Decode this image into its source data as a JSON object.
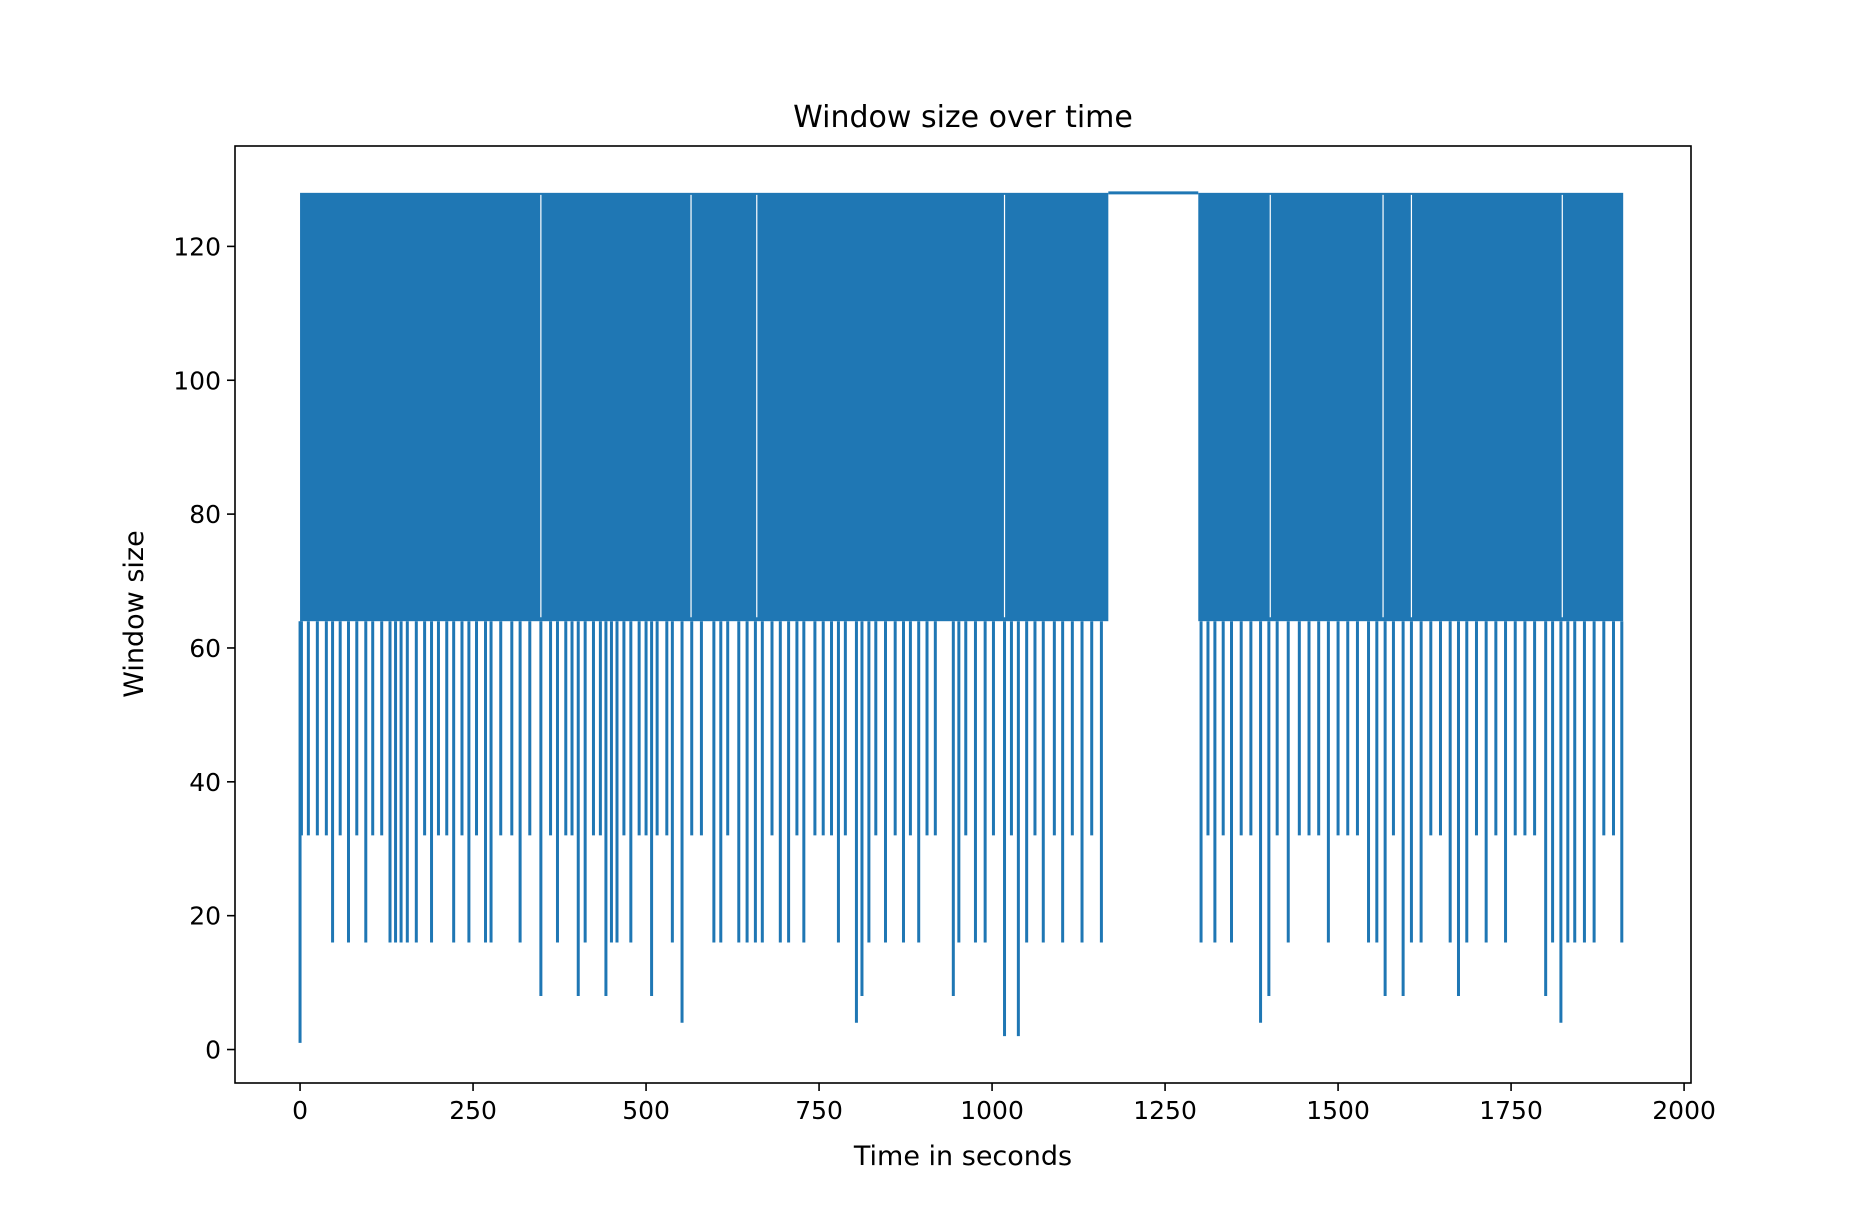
{
  "chart_data": {
    "type": "line",
    "title": "Window size over time",
    "xlabel": "Time in seconds",
    "ylabel": "Window size",
    "xlim": [
      -94,
      2010
    ],
    "ylim": [
      -5,
      135
    ],
    "x_ticks": [
      0,
      250,
      500,
      750,
      1000,
      1250,
      1500,
      1750,
      2000
    ],
    "y_ticks": [
      0,
      20,
      40,
      60,
      80,
      100,
      120
    ],
    "x_tick_labels": [
      "0",
      "250",
      "500",
      "750",
      "1000",
      "1250",
      "1500",
      "1750",
      "2000"
    ],
    "y_tick_labels": [
      "0",
      "20",
      "40",
      "60",
      "80",
      "100",
      "120"
    ],
    "grid": false,
    "legend": "none",
    "color": "#1f77b4",
    "series": [
      {
        "plateau_level": 128,
        "floor_level": 64,
        "x_range": [
          0,
          1912
        ],
        "flat_interval": [
          1168,
          1298
        ],
        "dense_oscillation_between": [
          64,
          128
        ],
        "dips": [
          {
            "x": 0,
            "y": 1
          },
          {
            "x": 2,
            "y": 32
          },
          {
            "x": 12,
            "y": 32
          },
          {
            "x": 25,
            "y": 32
          },
          {
            "x": 38,
            "y": 32
          },
          {
            "x": 47,
            "y": 16
          },
          {
            "x": 58,
            "y": 32
          },
          {
            "x": 70,
            "y": 16
          },
          {
            "x": 82,
            "y": 32
          },
          {
            "x": 95,
            "y": 16
          },
          {
            "x": 105,
            "y": 32
          },
          {
            "x": 118,
            "y": 32
          },
          {
            "x": 130,
            "y": 16
          },
          {
            "x": 138,
            "y": 16
          },
          {
            "x": 146,
            "y": 16
          },
          {
            "x": 155,
            "y": 16
          },
          {
            "x": 168,
            "y": 16
          },
          {
            "x": 180,
            "y": 32
          },
          {
            "x": 190,
            "y": 16
          },
          {
            "x": 200,
            "y": 32
          },
          {
            "x": 212,
            "y": 32
          },
          {
            "x": 222,
            "y": 16
          },
          {
            "x": 234,
            "y": 32
          },
          {
            "x": 244,
            "y": 16
          },
          {
            "x": 255,
            "y": 32
          },
          {
            "x": 268,
            "y": 16
          },
          {
            "x": 276,
            "y": 16
          },
          {
            "x": 290,
            "y": 32
          },
          {
            "x": 306,
            "y": 32
          },
          {
            "x": 318,
            "y": 16
          },
          {
            "x": 332,
            "y": 32
          },
          {
            "x": 348,
            "y": 8
          },
          {
            "x": 362,
            "y": 32
          },
          {
            "x": 372,
            "y": 16
          },
          {
            "x": 384,
            "y": 32
          },
          {
            "x": 393,
            "y": 32
          },
          {
            "x": 402,
            "y": 8
          },
          {
            "x": 412,
            "y": 16
          },
          {
            "x": 424,
            "y": 32
          },
          {
            "x": 434,
            "y": 32
          },
          {
            "x": 442,
            "y": 8
          },
          {
            "x": 450,
            "y": 16
          },
          {
            "x": 458,
            "y": 16
          },
          {
            "x": 468,
            "y": 32
          },
          {
            "x": 478,
            "y": 16
          },
          {
            "x": 490,
            "y": 32
          },
          {
            "x": 500,
            "y": 32
          },
          {
            "x": 508,
            "y": 8
          },
          {
            "x": 516,
            "y": 32
          },
          {
            "x": 530,
            "y": 32
          },
          {
            "x": 538,
            "y": 16
          },
          {
            "x": 552,
            "y": 4
          },
          {
            "x": 566,
            "y": 32
          },
          {
            "x": 580,
            "y": 32
          },
          {
            "x": 598,
            "y": 16
          },
          {
            "x": 608,
            "y": 16
          },
          {
            "x": 618,
            "y": 32
          },
          {
            "x": 634,
            "y": 16
          },
          {
            "x": 646,
            "y": 16
          },
          {
            "x": 658,
            "y": 16
          },
          {
            "x": 668,
            "y": 16
          },
          {
            "x": 682,
            "y": 32
          },
          {
            "x": 694,
            "y": 16
          },
          {
            "x": 706,
            "y": 16
          },
          {
            "x": 718,
            "y": 32
          },
          {
            "x": 728,
            "y": 16
          },
          {
            "x": 744,
            "y": 32
          },
          {
            "x": 756,
            "y": 32
          },
          {
            "x": 768,
            "y": 32
          },
          {
            "x": 778,
            "y": 16
          },
          {
            "x": 788,
            "y": 32
          },
          {
            "x": 804,
            "y": 4
          },
          {
            "x": 812,
            "y": 8
          },
          {
            "x": 822,
            "y": 16
          },
          {
            "x": 832,
            "y": 32
          },
          {
            "x": 846,
            "y": 16
          },
          {
            "x": 860,
            "y": 32
          },
          {
            "x": 872,
            "y": 16
          },
          {
            "x": 882,
            "y": 32
          },
          {
            "x": 894,
            "y": 16
          },
          {
            "x": 906,
            "y": 32
          },
          {
            "x": 918,
            "y": 32
          },
          {
            "x": 944,
            "y": 8
          },
          {
            "x": 952,
            "y": 16
          },
          {
            "x": 962,
            "y": 32
          },
          {
            "x": 976,
            "y": 16
          },
          {
            "x": 990,
            "y": 16
          },
          {
            "x": 1002,
            "y": 32
          },
          {
            "x": 1018,
            "y": 2
          },
          {
            "x": 1028,
            "y": 32
          },
          {
            "x": 1038,
            "y": 2
          },
          {
            "x": 1050,
            "y": 16
          },
          {
            "x": 1062,
            "y": 32
          },
          {
            "x": 1074,
            "y": 16
          },
          {
            "x": 1090,
            "y": 32
          },
          {
            "x": 1102,
            "y": 16
          },
          {
            "x": 1116,
            "y": 32
          },
          {
            "x": 1130,
            "y": 16
          },
          {
            "x": 1144,
            "y": 32
          },
          {
            "x": 1158,
            "y": 16
          },
          {
            "x": 1302,
            "y": 16
          },
          {
            "x": 1312,
            "y": 32
          },
          {
            "x": 1322,
            "y": 16
          },
          {
            "x": 1334,
            "y": 32
          },
          {
            "x": 1346,
            "y": 16
          },
          {
            "x": 1360,
            "y": 32
          },
          {
            "x": 1374,
            "y": 32
          },
          {
            "x": 1388,
            "y": 4
          },
          {
            "x": 1400,
            "y": 8
          },
          {
            "x": 1412,
            "y": 32
          },
          {
            "x": 1428,
            "y": 16
          },
          {
            "x": 1444,
            "y": 32
          },
          {
            "x": 1458,
            "y": 32
          },
          {
            "x": 1472,
            "y": 32
          },
          {
            "x": 1486,
            "y": 16
          },
          {
            "x": 1500,
            "y": 32
          },
          {
            "x": 1514,
            "y": 32
          },
          {
            "x": 1528,
            "y": 32
          },
          {
            "x": 1544,
            "y": 16
          },
          {
            "x": 1556,
            "y": 16
          },
          {
            "x": 1568,
            "y": 8
          },
          {
            "x": 1580,
            "y": 32
          },
          {
            "x": 1594,
            "y": 8
          },
          {
            "x": 1606,
            "y": 16
          },
          {
            "x": 1620,
            "y": 16
          },
          {
            "x": 1634,
            "y": 32
          },
          {
            "x": 1648,
            "y": 32
          },
          {
            "x": 1662,
            "y": 16
          },
          {
            "x": 1674,
            "y": 8
          },
          {
            "x": 1686,
            "y": 16
          },
          {
            "x": 1700,
            "y": 32
          },
          {
            "x": 1714,
            "y": 16
          },
          {
            "x": 1728,
            "y": 32
          },
          {
            "x": 1742,
            "y": 16
          },
          {
            "x": 1756,
            "y": 32
          },
          {
            "x": 1770,
            "y": 32
          },
          {
            "x": 1784,
            "y": 32
          },
          {
            "x": 1800,
            "y": 8
          },
          {
            "x": 1810,
            "y": 16
          },
          {
            "x": 1822,
            "y": 4
          },
          {
            "x": 1832,
            "y": 16
          },
          {
            "x": 1842,
            "y": 16
          },
          {
            "x": 1856,
            "y": 16
          },
          {
            "x": 1870,
            "y": 16
          },
          {
            "x": 1884,
            "y": 32
          },
          {
            "x": 1898,
            "y": 32
          },
          {
            "x": 1910,
            "y": 16
          }
        ]
      }
    ]
  }
}
